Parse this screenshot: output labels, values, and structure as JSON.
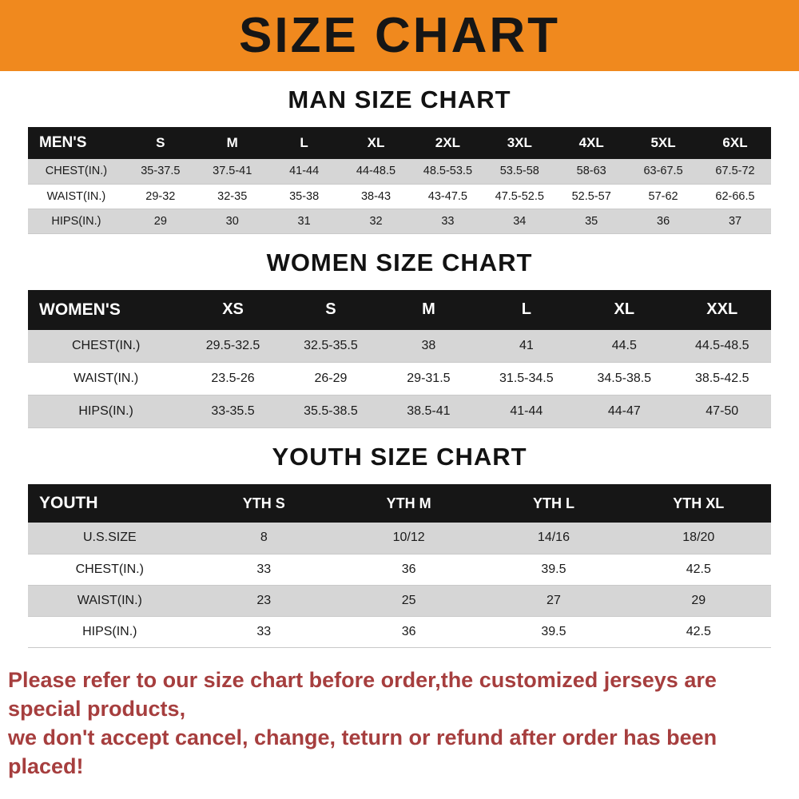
{
  "banner": {
    "title": "SIZE CHART",
    "bg_color": "#f0891e",
    "text_color": "#161616"
  },
  "sections": [
    {
      "heading": "MAN SIZE CHART",
      "table": {
        "header": [
          "MEN'S",
          "S",
          "M",
          "L",
          "XL",
          "2XL",
          "3XL",
          "4XL",
          "5XL",
          "6XL"
        ],
        "rows": [
          [
            "CHEST(IN.)",
            "35-37.5",
            "37.5-41",
            "41-44",
            "44-48.5",
            "48.5-53.5",
            "53.5-58",
            "58-63",
            "63-67.5",
            "67.5-72"
          ],
          [
            "WAIST(IN.)",
            "29-32",
            "32-35",
            "35-38",
            "38-43",
            "43-47.5",
            "47.5-52.5",
            "52.5-57",
            "57-62",
            "62-66.5"
          ],
          [
            "HIPS(IN.)",
            "29",
            "30",
            "31",
            "32",
            "33",
            "34",
            "35",
            "36",
            "37"
          ]
        ]
      }
    },
    {
      "heading": "WOMEN SIZE CHART",
      "table": {
        "header": [
          "WOMEN'S",
          "XS",
          "S",
          "M",
          "L",
          "XL",
          "XXL"
        ],
        "rows": [
          [
            "CHEST(IN.)",
            "29.5-32.5",
            "32.5-35.5",
            "38",
            "41",
            "44.5",
            "44.5-48.5"
          ],
          [
            "WAIST(IN.)",
            "23.5-26",
            "26-29",
            "29-31.5",
            "31.5-34.5",
            "34.5-38.5",
            "38.5-42.5"
          ],
          [
            "HIPS(IN.)",
            "33-35.5",
            "35.5-38.5",
            "38.5-41",
            "41-44",
            "44-47",
            "47-50"
          ]
        ]
      }
    },
    {
      "heading": "YOUTH SIZE CHART",
      "table": {
        "header": [
          "YOUTH",
          "YTH S",
          "YTH M",
          "YTH L",
          "YTH XL"
        ],
        "rows": [
          [
            "U.S.SIZE",
            "8",
            "10/12",
            "14/16",
            "18/20"
          ],
          [
            "CHEST(IN.)",
            "33",
            "36",
            "39.5",
            "42.5"
          ],
          [
            "WAIST(IN.)",
            "23",
            "25",
            "27",
            "29"
          ],
          [
            "HIPS(IN.)",
            "33",
            "36",
            "39.5",
            "42.5"
          ]
        ]
      }
    }
  ],
  "footer": {
    "line1": "Please refer to our size chart before order,the customized jerseys are special products,",
    "line2": "we don't accept cancel, change, teturn or refund after order has been placed!",
    "text_color": "#a63e3e"
  },
  "colors": {
    "banner_orange": "#f0891e",
    "header_black": "#161616",
    "stripe_gray": "#d6d6d6",
    "footer_red": "#a63e3e"
  },
  "chart_data": [
    {
      "type": "table",
      "title": "MAN SIZE CHART",
      "columns": [
        "MEN'S",
        "S",
        "M",
        "L",
        "XL",
        "2XL",
        "3XL",
        "4XL",
        "5XL",
        "6XL"
      ],
      "rows": [
        [
          "CHEST(IN.)",
          "35-37.5",
          "37.5-41",
          "41-44",
          "44-48.5",
          "48.5-53.5",
          "53.5-58",
          "58-63",
          "63-67.5",
          "67.5-72"
        ],
        [
          "WAIST(IN.)",
          "29-32",
          "32-35",
          "35-38",
          "38-43",
          "43-47.5",
          "47.5-52.5",
          "52.5-57",
          "57-62",
          "62-66.5"
        ],
        [
          "HIPS(IN.)",
          "29",
          "30",
          "31",
          "32",
          "33",
          "34",
          "35",
          "36",
          "37"
        ]
      ]
    },
    {
      "type": "table",
      "title": "WOMEN SIZE CHART",
      "columns": [
        "WOMEN'S",
        "XS",
        "S",
        "M",
        "L",
        "XL",
        "XXL"
      ],
      "rows": [
        [
          "CHEST(IN.)",
          "29.5-32.5",
          "32.5-35.5",
          "38",
          "41",
          "44.5",
          "44.5-48.5"
        ],
        [
          "WAIST(IN.)",
          "23.5-26",
          "26-29",
          "29-31.5",
          "31.5-34.5",
          "34.5-38.5",
          "38.5-42.5"
        ],
        [
          "HIPS(IN.)",
          "33-35.5",
          "35.5-38.5",
          "38.5-41",
          "41-44",
          "44-47",
          "47-50"
        ]
      ]
    },
    {
      "type": "table",
      "title": "YOUTH SIZE CHART",
      "columns": [
        "YOUTH",
        "YTH S",
        "YTH M",
        "YTH L",
        "YTH XL"
      ],
      "rows": [
        [
          "U.S.SIZE",
          "8",
          "10/12",
          "14/16",
          "18/20"
        ],
        [
          "CHEST(IN.)",
          "33",
          "36",
          "39.5",
          "42.5"
        ],
        [
          "WAIST(IN.)",
          "23",
          "25",
          "27",
          "29"
        ],
        [
          "HIPS(IN.)",
          "33",
          "36",
          "39.5",
          "42.5"
        ]
      ]
    }
  ]
}
